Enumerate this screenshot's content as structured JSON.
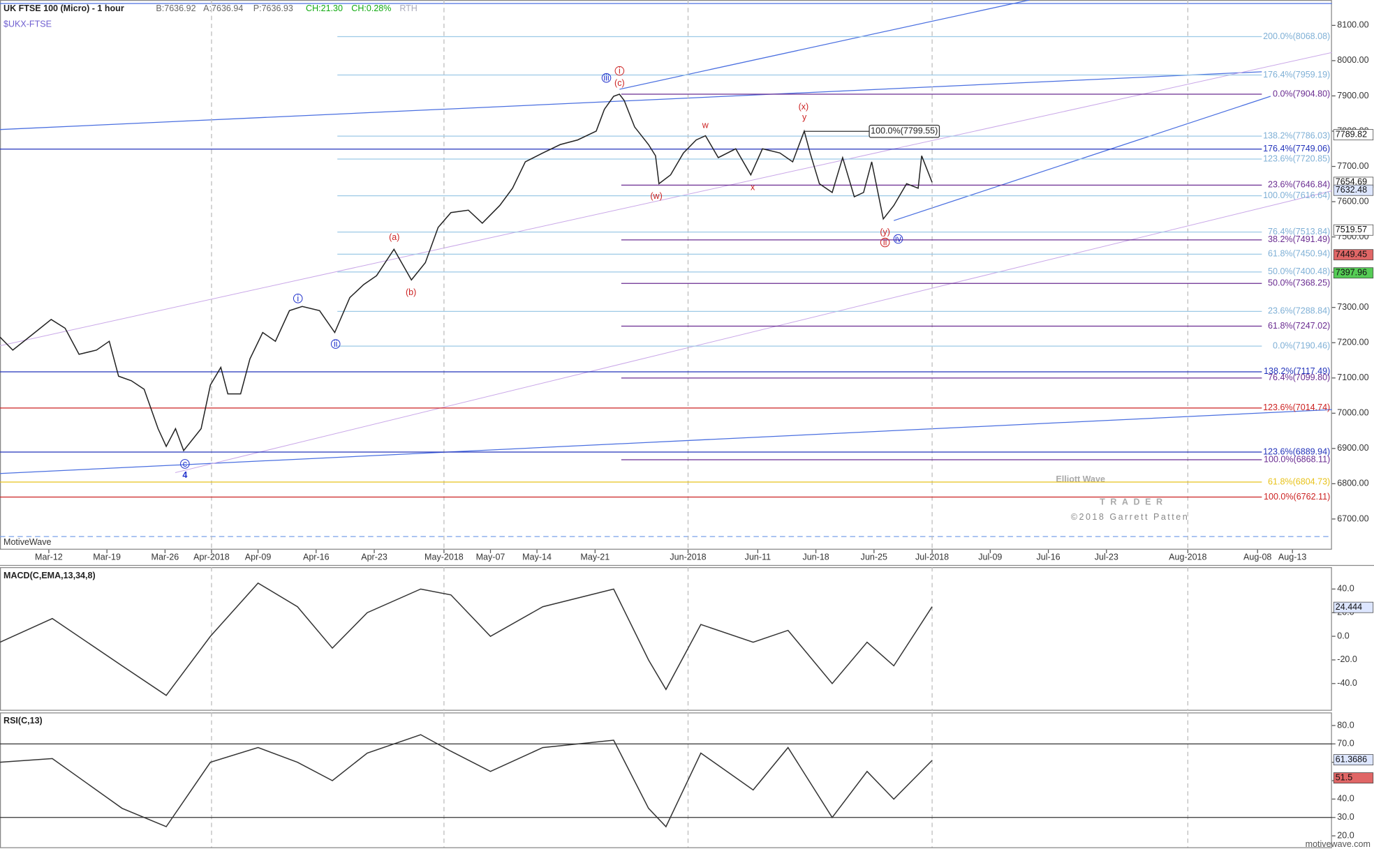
{
  "chart_data": [
    {
      "type": "line",
      "title": "UK FTSE 100 (Micro) - 1 hour",
      "subtitle": "$UKX-FTSE",
      "quote": [
        "B:7636.92",
        "A:7636.94",
        "P:7636.93",
        "CH:21.30",
        "CH:0.28%",
        "RTH"
      ],
      "x": [
        -4.2,
        -3.1,
        -1.2,
        0.2,
        1.4,
        2.6,
        4.1,
        5.2,
        6.0,
        7.1,
        8.2,
        9.4,
        10.1,
        10.9,
        11.6,
        13.1,
        13.9,
        14.8,
        15.4,
        16.5,
        17.3,
        18.4,
        19.5,
        20.7,
        21.8,
        23.3,
        24.6,
        25.9,
        27.1,
        28.2,
        29.7,
        31.2,
        32.4,
        33.5,
        34.6,
        36.1,
        37.3,
        38.8,
        39.9,
        41.0,
        42.5,
        44.0,
        45.5,
        47.1,
        47.8,
        48.6,
        49.1,
        49.5,
        50.4,
        51.6,
        52.2,
        52.5,
        53.5,
        54.6,
        55.7,
        56.5,
        57.6,
        59.1,
        60.4,
        61.4,
        62.9,
        64.0,
        65.0,
        65.5,
        66.3,
        67.4,
        68.3,
        69.3,
        70.1,
        70.8,
        71.8,
        72.7,
        73.8,
        74.8,
        75.1,
        76.0
      ],
      "series": [
        {
          "color": "#222222",
          "values": [
            7216,
            7179,
            7229,
            7266,
            7241,
            7167,
            7179,
            7204,
            7105,
            7092,
            7068,
            6956,
            6906,
            6956,
            6894,
            6956,
            7080,
            7130,
            7055,
            7055,
            7154,
            7229,
            7204,
            7291,
            7303,
            7291,
            7229,
            7328,
            7365,
            7390,
            7465,
            7378,
            7427,
            7527,
            7569,
            7576,
            7539,
            7589,
            7638,
            7713,
            7738,
            7762,
            7775,
            7800,
            7862,
            7899,
            7905,
            7887,
            7812,
            7762,
            7730,
            7651,
            7676,
            7738,
            7775,
            7787,
            7725,
            7750,
            7676,
            7750,
            7738,
            7713,
            7800,
            7738,
            7651,
            7626,
            7725,
            7614,
            7626,
            7713,
            7551,
            7589,
            7651,
            7638,
            7730,
            7655
          ]
        }
      ],
      "xlim": [
        -4.2,
        110.4
      ],
      "xticks": [
        {
          "value": 0,
          "label": "Mar-12"
        },
        {
          "value": 5,
          "label": "Mar-19"
        },
        {
          "value": 10,
          "label": "Mar-26"
        },
        {
          "value": 14,
          "label": "Apr-2018"
        },
        {
          "value": 18,
          "label": "Apr-09"
        },
        {
          "value": 23,
          "label": "Apr-16"
        },
        {
          "value": 28,
          "label": "Apr-23"
        },
        {
          "value": 34,
          "label": "May-2018"
        },
        {
          "value": 38,
          "label": "May-07"
        },
        {
          "value": 42,
          "label": "May-14"
        },
        {
          "value": 47,
          "label": "May-21"
        },
        {
          "value": 55,
          "label": "Jun-2018"
        },
        {
          "value": 61,
          "label": "Jun-11"
        },
        {
          "value": 66,
          "label": "Jun-18"
        },
        {
          "value": 71,
          "label": "Jun-25"
        },
        {
          "value": 76,
          "label": "Jul-2018"
        },
        {
          "value": 81,
          "label": "Jul-09"
        },
        {
          "value": 86,
          "label": "Jul-16"
        },
        {
          "value": 91,
          "label": "Jul-23"
        },
        {
          "value": 98,
          "label": "Aug-2018"
        },
        {
          "value": 104,
          "label": "Aug-08"
        },
        {
          "value": 107,
          "label": "Aug-13"
        }
      ],
      "ylim": [
        6613,
        8172
      ],
      "yticks": [
        {
          "value": 6700,
          "label": "6700.00"
        },
        {
          "value": 6800,
          "label": "6800.00"
        },
        {
          "value": 6900,
          "label": "6900.00"
        },
        {
          "value": 7000,
          "label": "7000.00"
        },
        {
          "value": 7100,
          "label": "7100.00"
        },
        {
          "value": 7200,
          "label": "7200.00"
        },
        {
          "value": 7300,
          "label": "7300.00"
        },
        {
          "value": 7400,
          "label": "7400.00"
        },
        {
          "value": 7500,
          "label": "7500.00"
        },
        {
          "value": 7600,
          "label": "7600.00"
        },
        {
          "value": 7700,
          "label": "7700.00"
        },
        {
          "value": 7800,
          "label": "7800.00"
        },
        {
          "value": 7900,
          "label": "7900.00"
        },
        {
          "value": 8000,
          "label": "8000.00"
        },
        {
          "value": 8100,
          "label": "8100.00"
        }
      ],
      "levels": [
        {
          "label": "200.0%(8068.08)",
          "value": 8068.08,
          "color": "#9cc9e6"
        },
        {
          "label": "176.4%(7959.19)",
          "value": 7959.19,
          "color": "#9cc9e6"
        },
        {
          "label": "0.0%(7904.80)",
          "value": 7904.8,
          "color": "#6a2c91"
        },
        {
          "label": "138.2%(7786.03)",
          "value": 7786.03,
          "color": "#9cc9e6"
        },
        {
          "label": "176.4%(7749.06)",
          "value": 7749.06,
          "color": "#2233bb"
        },
        {
          "label": "123.6%(7720.85)",
          "value": 7720.85,
          "color": "#9cc9e6"
        },
        {
          "label": "23.6%(7646.84)",
          "value": 7646.84,
          "color": "#6a2c91"
        },
        {
          "label": "100.0%(7616.64)",
          "value": 7616.64,
          "color": "#9cc9e6"
        },
        {
          "label": "76.4%(7513.84)",
          "value": 7513.84,
          "color": "#9cc9e6"
        },
        {
          "label": "38.2%(7491.49)",
          "value": 7491.49,
          "color": "#6a2c91"
        },
        {
          "label": "61.8%(7450.94)",
          "value": 7450.94,
          "color": "#9cc9e6"
        },
        {
          "label": "50.0%(7400.48)",
          "value": 7400.48,
          "color": "#9cc9e6"
        },
        {
          "label": "50.0%(7368.25)",
          "value": 7368.25,
          "color": "#6a2c91"
        },
        {
          "label": "23.6%(7288.84)",
          "value": 7288.84,
          "color": "#9cc9e6"
        },
        {
          "label": "61.8%(7247.02)",
          "value": 7247.02,
          "color": "#6a2c91"
        },
        {
          "label": "0.0%(7190.46)",
          "value": 7190.46,
          "color": "#9cc9e6"
        },
        {
          "label": "138.2%(7117.49)",
          "value": 7117.49,
          "color": "#2233bb"
        },
        {
          "label": "76.4%(7099.80)",
          "value": 7099.8,
          "color": "#6a2c91"
        },
        {
          "label": "123.6%(7014.74)",
          "value": 7014.74,
          "color": "#cc2222"
        },
        {
          "label": "123.6%(6889.94)",
          "value": 6889.94,
          "color": "#2233bb"
        },
        {
          "label": "100.0%(6868.11)",
          "value": 6868.11,
          "color": "#6a2c91"
        },
        {
          "label": "61.8%(6804.73)",
          "value": 6804.73,
          "color": "#e8c21a"
        },
        {
          "label": "100.0%(6762.11)",
          "value": 6762.11,
          "color": "#cc2222"
        }
      ],
      "callout": {
        "label": "100.0%(7799.55)",
        "value": 7799.55
      },
      "tags": [
        {
          "value": 7789.82,
          "color": "#ffffff"
        },
        {
          "value": 7654.69,
          "color": "#ffffff"
        },
        {
          "value": 7632.48,
          "color": "#dde6ff"
        },
        {
          "value": 7519.57,
          "color": "#ffffff"
        },
        {
          "value": 7449.45,
          "color": "#e06666"
        },
        {
          "value": 7397.96,
          "color": "#55cc55"
        }
      ],
      "annotations": [
        {
          "text": "iii",
          "color": "#2233cc",
          "circled": true
        },
        {
          "text": "i",
          "color": "#cc2222",
          "circled": true
        },
        {
          "text": "(c)",
          "color": "#cc2222"
        },
        {
          "text": "(x)",
          "color": "#cc2222"
        },
        {
          "text": "y",
          "color": "#cc2222"
        },
        {
          "text": "w",
          "color": "#cc2222"
        },
        {
          "text": "(w)",
          "color": "#cc2222"
        },
        {
          "text": "x",
          "color": "#cc2222"
        },
        {
          "text": "(y)",
          "color": "#cc2222"
        },
        {
          "text": "ii",
          "color": "#cc2222",
          "circled": true
        },
        {
          "text": "iv",
          "color": "#2233cc",
          "circled": true
        },
        {
          "text": "(a)",
          "color": "#cc2222"
        },
        {
          "text": "(b)",
          "color": "#cc2222"
        },
        {
          "text": "i",
          "color": "#2233cc",
          "circled": true
        },
        {
          "text": "ii",
          "color": "#2233cc",
          "circled": true
        },
        {
          "text": "c",
          "color": "#2233cc",
          "circled": true
        },
        {
          "text": "4",
          "color": "#2233cc"
        }
      ],
      "source": "MotiveWave"
    },
    {
      "type": "line",
      "title": "MACD(C,EMA,13,34,8)",
      "x": [
        -4.2,
        0.3,
        6.3,
        10.1,
        13.9,
        18.0,
        21.4,
        24.4,
        27.4,
        32.0,
        34.6,
        38.0,
        42.5,
        48.6,
        51.6,
        53.1,
        56.1,
        60.6,
        63.6,
        67.4,
        70.4,
        72.7,
        76.0
      ],
      "series": [
        {
          "color": "#333333",
          "values": [
            -5,
            15,
            -25,
            -50,
            0,
            45,
            25,
            -10,
            20,
            40,
            35,
            0,
            25,
            40,
            -20,
            -45,
            10,
            -5,
            5,
            -40,
            -5,
            -25,
            25
          ]
        }
      ],
      "ylim": [
        -63,
        58.5
      ],
      "yticks": [
        {
          "value": -40,
          "label": "-40.0"
        },
        {
          "value": -20,
          "label": "-20.0"
        },
        {
          "value": 0,
          "label": "0.0"
        },
        {
          "value": 20,
          "label": "20.0"
        },
        {
          "value": 40,
          "label": "40.0"
        }
      ],
      "tags": [
        {
          "value": 24.444,
          "color": "#dde6ff"
        }
      ]
    },
    {
      "type": "line",
      "title": "RSI(C,13)",
      "x": [
        -4.2,
        0.3,
        6.3,
        10.1,
        13.9,
        18.0,
        21.4,
        24.4,
        27.4,
        32.0,
        34.6,
        38.0,
        42.5,
        48.6,
        51.6,
        53.1,
        56.1,
        60.6,
        63.6,
        67.4,
        70.4,
        72.7,
        76.0
      ],
      "series": [
        {
          "color": "#333333",
          "values": [
            60,
            62,
            35,
            25,
            60,
            68,
            60,
            50,
            65,
            75,
            66,
            55,
            68,
            72,
            35,
            25,
            65,
            45,
            68,
            30,
            55,
            40,
            61
          ]
        }
      ],
      "ylim": [
        13.8,
        87.1
      ],
      "yticks": [
        {
          "value": 20,
          "label": "20.0"
        },
        {
          "value": 30,
          "label": "30.0"
        },
        {
          "value": 40,
          "label": "40.0"
        },
        {
          "value": 50,
          "label": "50.0"
        },
        {
          "value": 60,
          "label": "60.0"
        },
        {
          "value": 70,
          "label": "70.0"
        },
        {
          "value": 80,
          "label": "80.0"
        }
      ],
      "reference_lines": [
        70,
        30
      ],
      "tags": [
        {
          "value": 61.3686,
          "color": "#dde6ff"
        },
        {
          "value": 51.5,
          "color": "#e06666"
        }
      ]
    }
  ],
  "watermark": {
    "brand": "Elliott Wave",
    "sub": "TRADER",
    "copyright": "©2018 Garrett Patten"
  },
  "footer": "motivewave.com"
}
